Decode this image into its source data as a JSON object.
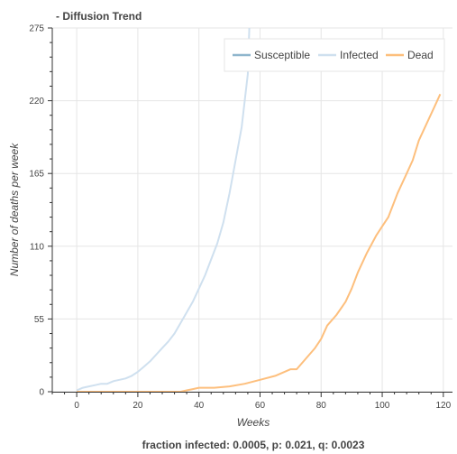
{
  "chart_data": {
    "type": "line",
    "title": "- Diffusion Trend",
    "xlabel": "Weeks",
    "ylabel": "Number of deaths per week",
    "footer": "fraction infected: 0.0005, p: 0.021, q: 0.0023",
    "xlim": [
      -8,
      123
    ],
    "ylim": [
      0,
      275
    ],
    "x_ticks": [
      0,
      20,
      40,
      60,
      80,
      100,
      120
    ],
    "y_ticks": [
      0,
      55,
      110,
      165,
      220,
      275
    ],
    "grid": true,
    "legend_position": "top-right",
    "series": [
      {
        "name": "Susceptible",
        "color": "#8fb6cd",
        "x": [],
        "y": []
      },
      {
        "name": "Infected",
        "color": "#cfe0ef",
        "x": [
          0,
          2,
          4,
          6,
          8,
          10,
          12,
          14,
          16,
          18,
          20,
          22,
          24,
          26,
          28,
          30,
          32,
          34,
          36,
          38,
          40,
          42,
          44,
          46,
          48,
          50,
          52,
          54,
          56,
          56.5
        ],
        "y": [
          1,
          3,
          4,
          5,
          6,
          6,
          8,
          9,
          10,
          12,
          15,
          19,
          23,
          28,
          33,
          38,
          44,
          52,
          60,
          68,
          78,
          88,
          100,
          112,
          128,
          150,
          175,
          200,
          240,
          275
        ]
      },
      {
        "name": "Dead",
        "color": "#fdbf7d",
        "x": [
          0,
          10,
          20,
          30,
          34,
          36,
          38,
          40,
          45,
          50,
          55,
          60,
          65,
          70,
          72,
          75,
          78,
          80,
          82,
          85,
          88,
          90,
          92,
          95,
          98,
          100,
          102,
          105,
          108,
          110,
          112,
          115,
          117,
          119
        ],
        "y": [
          0,
          0,
          0,
          0,
          0,
          1,
          2,
          3,
          3,
          4,
          6,
          9,
          12,
          17,
          17,
          25,
          33,
          40,
          50,
          58,
          68,
          78,
          90,
          105,
          118,
          125,
          132,
          150,
          165,
          175,
          190,
          205,
          215,
          225
        ]
      }
    ]
  }
}
